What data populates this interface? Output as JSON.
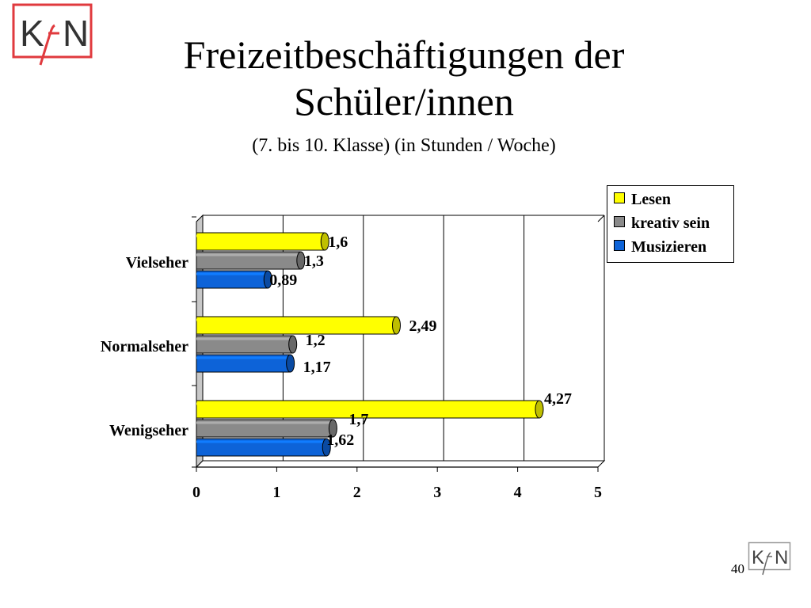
{
  "logo": {
    "text": "KfN"
  },
  "title": "Freizeitbeschäftigungen der Schüler/innen",
  "subtitle": "(7. bis 10. Klasse) (in Stunden / Woche)",
  "page_number": "40",
  "colors": {
    "Lesen": "#ffff00",
    "kreativ sein": "#8a8a8a",
    "Musizieren": "#0d63d8",
    "logo": "#e03a3e"
  },
  "chart_data": {
    "type": "bar",
    "orientation": "horizontal",
    "style": "3d",
    "categories": [
      "Vielseher",
      "Normalseher",
      "Wenigseher"
    ],
    "series": [
      {
        "name": "Lesen",
        "values": [
          1.6,
          2.49,
          4.27
        ],
        "labels": [
          "1,6",
          "2,49",
          "4,27"
        ]
      },
      {
        "name": "kreativ sein",
        "values": [
          1.3,
          1.2,
          1.7
        ],
        "labels": [
          "1,3",
          "1,2",
          "1,7"
        ]
      },
      {
        "name": "Musizieren",
        "values": [
          0.89,
          1.17,
          1.62
        ],
        "labels": [
          "0,89",
          "1,17",
          "1,62"
        ]
      }
    ],
    "xlim": [
      0,
      5
    ],
    "xticks": [
      "0",
      "1",
      "2",
      "3",
      "4",
      "5"
    ],
    "grid": true,
    "legend": "top-right"
  }
}
